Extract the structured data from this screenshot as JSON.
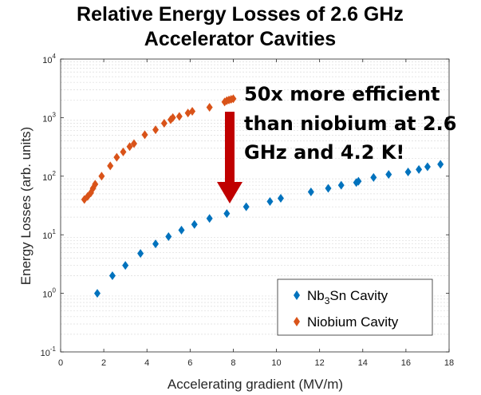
{
  "chart_data": {
    "type": "scatter",
    "title_line1": "Relative Energy Losses of 2.6 GHz",
    "title_line2": "Accelerator Cavities",
    "xlabel": "Accelerating gradient (MV/m)",
    "ylabel": "Energy Losses (arb. units)",
    "xlim": [
      0,
      18
    ],
    "ylim": [
      0.1,
      10000
    ],
    "yscale": "log",
    "grid": "minor-y",
    "x_ticks": [
      "0",
      "2",
      "4",
      "6",
      "8",
      "10",
      "12",
      "14",
      "16",
      "18"
    ],
    "y_tick_base": "10",
    "y_tick_exponents": [
      "-1",
      "0",
      "1",
      "2",
      "3",
      "4"
    ],
    "legend_position": "bottom-right",
    "legend": {
      "nb3sn_prefix": "Nb",
      "nb3sn_sub": "3",
      "nb3sn_suffix": "Sn Cavity",
      "niobium": "Niobium Cavity"
    },
    "annotation": {
      "line1": "50x more efficient",
      "line2": "than niobium at 2.6",
      "line3": "GHz and 4.2 K!"
    },
    "colors": {
      "nb3sn": "#0072BD",
      "niobium": "#D95319",
      "arrow": "#C00000"
    },
    "series": [
      {
        "key": "nb3sn",
        "x": [
          1.7,
          2.4,
          3.0,
          3.7,
          4.4,
          5.0,
          5.6,
          6.2,
          6.9,
          7.7,
          8.6,
          9.7,
          10.2,
          11.6,
          12.4,
          13.0,
          13.7,
          13.8,
          14.5,
          15.2,
          16.1,
          16.6,
          17.0,
          17.6
        ],
        "y": [
          1.0,
          2.0,
          3.0,
          4.8,
          7.0,
          9.3,
          12.0,
          15.0,
          19.0,
          23.0,
          30.0,
          37.0,
          42.0,
          54.0,
          62.0,
          70.0,
          78.0,
          82.0,
          95.0,
          107.0,
          118.0,
          130.0,
          145.0,
          160.0
        ]
      },
      {
        "key": "niobium",
        "x": [
          1.1,
          1.25,
          1.4,
          1.5,
          1.6,
          1.9,
          2.3,
          2.6,
          2.9,
          3.2,
          3.4,
          3.9,
          4.4,
          4.8,
          5.1,
          5.2,
          5.5,
          5.9,
          6.1,
          6.9,
          7.6,
          7.7,
          7.8,
          7.9,
          8.0
        ],
        "y": [
          40,
          45,
          52,
          62,
          73,
          100,
          150,
          210,
          260,
          320,
          360,
          510,
          620,
          800,
          920,
          1000,
          1050,
          1200,
          1280,
          1500,
          1850,
          1950,
          2000,
          2050,
          2100
        ]
      }
    ]
  }
}
